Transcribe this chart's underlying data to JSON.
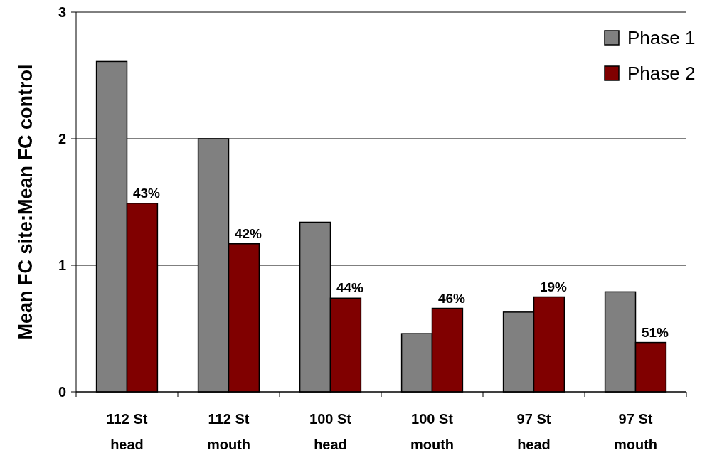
{
  "chart_data": {
    "type": "bar",
    "ylabel": "Mean FC site:Mean FC control",
    "categories": [
      "112 St head",
      "112 St mouth",
      "100 St head",
      "100 St mouth",
      "97 St head",
      "97 St mouth"
    ],
    "series": [
      {
        "name": "Phase 1",
        "color": "#808080",
        "values": [
          2.61,
          2.0,
          1.34,
          0.46,
          0.63,
          0.79
        ]
      },
      {
        "name": "Phase 2",
        "color": "#800000",
        "values": [
          1.49,
          1.17,
          0.74,
          0.66,
          0.75,
          0.39
        ]
      }
    ],
    "annotations": [
      {
        "text": "43%",
        "x": "112 St head",
        "y": 1.49
      },
      {
        "text": "42%",
        "x": "112 St mouth",
        "y": 1.17
      },
      {
        "text": "44%",
        "x": "100 St head",
        "y": 0.74
      },
      {
        "text": "46%",
        "x": "100 St mouth",
        "y": 0.66
      },
      {
        "text": "19%",
        "x": "97 St head",
        "y": 0.75
      },
      {
        "text": "51%",
        "x": "97 St mouth",
        "y": 0.39
      }
    ],
    "ylim": [
      0,
      3
    ],
    "yticks": [
      0,
      1,
      2,
      3
    ],
    "grid": "y",
    "legend": "top right"
  }
}
